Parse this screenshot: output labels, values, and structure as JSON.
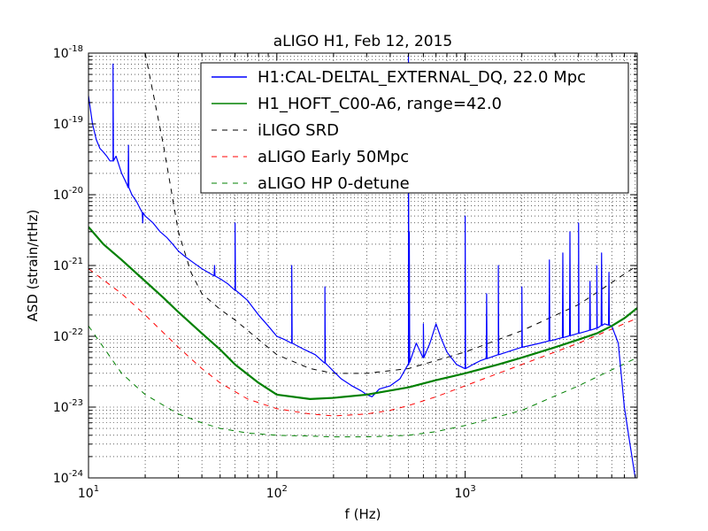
{
  "chart_data": {
    "type": "line",
    "title": "aLIGO H1, Feb 12, 2015",
    "xlabel": "f  (Hz)",
    "ylabel": "ASD (strain/rtHz)",
    "xscale": "log",
    "yscale": "log",
    "xlim": [
      10,
      8192
    ],
    "ylim": [
      1e-24,
      1e-18
    ],
    "grid": true,
    "legend_position": "top-right",
    "x_ticks": [
      {
        "value": 10,
        "base": "10",
        "exp": "1"
      },
      {
        "value": 100,
        "base": "10",
        "exp": "2"
      },
      {
        "value": 1000,
        "base": "10",
        "exp": "3"
      }
    ],
    "y_ticks": [
      {
        "value": 1e-24,
        "base": "10",
        "exp": "-24"
      },
      {
        "value": 1e-23,
        "base": "10",
        "exp": "-23"
      },
      {
        "value": 1e-22,
        "base": "10",
        "exp": "-22"
      },
      {
        "value": 1e-21,
        "base": "10",
        "exp": "-21"
      },
      {
        "value": 1e-20,
        "base": "10",
        "exp": "-20"
      },
      {
        "value": 1e-19,
        "base": "10",
        "exp": "-19"
      },
      {
        "value": 1e-18,
        "base": "10",
        "exp": "-18"
      }
    ],
    "series": [
      {
        "name": "H1:CAL-DELTAL_EXTERNAL_DQ, 22.0 Mpc",
        "color": "#0000ff",
        "style": "solid",
        "width": 1.2,
        "x": [
          10,
          10.5,
          11,
          11.5,
          12,
          12.5,
          13,
          13.5,
          14,
          15,
          16,
          17,
          18,
          19,
          20,
          22,
          24,
          26,
          28,
          30,
          33,
          36,
          40,
          45,
          50,
          55,
          60,
          65,
          70,
          75,
          80,
          90,
          100,
          110,
          120,
          140,
          160,
          180,
          200,
          220,
          250,
          280,
          300,
          320,
          350,
          400,
          450,
          500,
          550,
          600,
          650,
          700,
          750,
          800,
          900,
          1000,
          1100,
          1200,
          1500,
          2000,
          2500,
          3000,
          3500,
          4000,
          4500,
          5000,
          5500,
          6000,
          6500,
          7000,
          7500,
          8000
        ],
        "y": [
          2.5e-19,
          1e-19,
          6e-20,
          4.5e-20,
          4e-20,
          3.5e-20,
          3e-20,
          3e-20,
          3.5e-20,
          2e-20,
          1.4e-20,
          1e-20,
          8e-21,
          6e-21,
          5e-21,
          4e-21,
          3e-21,
          2.5e-21,
          2e-21,
          1.6e-21,
          1.3e-21,
          1.1e-21,
          9e-22,
          7.5e-22,
          6.5e-22,
          5.5e-22,
          4.5e-22,
          3.8e-22,
          3.2e-22,
          2.5e-22,
          2e-22,
          1.4e-22,
          1e-22,
          9e-23,
          8e-23,
          6.5e-23,
          5.5e-23,
          4.2e-23,
          3.2e-23,
          2.5e-23,
          2e-23,
          1.7e-23,
          1.5e-23,
          1.4e-23,
          1.8e-23,
          2e-23,
          2.5e-23,
          4e-23,
          8e-23,
          5e-23,
          8e-23,
          1.5e-22,
          9e-23,
          6e-23,
          4e-23,
          3.5e-23,
          4e-23,
          4.5e-23,
          5.5e-23,
          7e-23,
          8e-23,
          9e-23,
          1e-22,
          1.1e-22,
          1.2e-22,
          1.3e-22,
          1.5e-22,
          1.4e-22,
          8e-23,
          1e-23,
          3e-24,
          1e-24
        ],
        "peaks": [
          {
            "x": 13.5,
            "y": 7e-19
          },
          {
            "x": 16.3,
            "y": 5e-20
          },
          {
            "x": 19.4,
            "y": 4e-21
          },
          {
            "x": 46.7,
            "y": 1e-21
          },
          {
            "x": 60,
            "y": 4e-21
          },
          {
            "x": 120,
            "y": 1e-21
          },
          {
            "x": 180,
            "y": 5e-22
          },
          {
            "x": 500,
            "y": 1e-18
          },
          {
            "x": 505,
            "y": 3e-21
          },
          {
            "x": 600,
            "y": 1.5e-22
          },
          {
            "x": 1000,
            "y": 5e-21
          },
          {
            "x": 1300,
            "y": 4e-22
          },
          {
            "x": 1500,
            "y": 1e-21
          },
          {
            "x": 2000,
            "y": 5e-22
          },
          {
            "x": 2800,
            "y": 1.2e-21
          },
          {
            "x": 3300,
            "y": 1.5e-21
          },
          {
            "x": 3600,
            "y": 3e-21
          },
          {
            "x": 4000,
            "y": 4e-21
          },
          {
            "x": 4600,
            "y": 6e-22
          },
          {
            "x": 5000,
            "y": 1e-21
          },
          {
            "x": 5300,
            "y": 1.5e-21
          },
          {
            "x": 5800,
            "y": 8e-22
          }
        ]
      },
      {
        "name": "H1_HOFT_C00-A6, range=42.0",
        "color": "#008000",
        "style": "solid",
        "width": 2.2,
        "x": [
          10,
          12,
          15,
          20,
          25,
          30,
          40,
          50,
          60,
          80,
          100,
          150,
          200,
          300,
          500,
          700,
          1000,
          1500,
          2000,
          3000,
          4000,
          5000,
          6000,
          7000,
          8192
        ],
        "y": [
          3.5e-21,
          2e-21,
          1.2e-21,
          6e-22,
          3.5e-22,
          2.2e-22,
          1.1e-22,
          6.5e-23,
          4e-23,
          2.2e-23,
          1.5e-23,
          1.3e-23,
          1.35e-23,
          1.5e-23,
          1.9e-23,
          2.4e-23,
          3e-23,
          4e-23,
          5e-23,
          7e-23,
          9e-23,
          1.1e-22,
          1.4e-22,
          1.8e-22,
          2.5e-22
        ]
      },
      {
        "name": "iLIGO SRD",
        "color": "#000000",
        "style": "dashed",
        "width": 1,
        "x": [
          20,
          25,
          30,
          35,
          40,
          50,
          60,
          80,
          100,
          150,
          200,
          300,
          500,
          1000,
          2000,
          4000,
          8192
        ],
        "y": [
          1e-18,
          5e-20,
          3e-21,
          8e-22,
          4e-22,
          2.4e-22,
          1.7e-22,
          9e-23,
          5.5e-23,
          3.5e-23,
          3e-23,
          3e-23,
          3.5e-23,
          6e-23,
          1.2e-22,
          2.8e-22,
          1e-21
        ]
      },
      {
        "name": "aLIGO Early 50Mpc",
        "color": "#ff0000",
        "style": "dashed",
        "width": 1,
        "x": [
          10,
          15,
          20,
          30,
          40,
          50,
          70,
          100,
          150,
          200,
          300,
          400,
          500,
          700,
          1000,
          2000,
          4000,
          8192
        ],
        "y": [
          9e-22,
          4e-22,
          2e-22,
          7e-23,
          3.5e-23,
          2.2e-23,
          1.3e-23,
          9.5e-24,
          8e-24,
          7.5e-24,
          8e-24,
          9e-24,
          1.05e-23,
          1.4e-23,
          2e-23,
          4e-23,
          8e-23,
          1.8e-22
        ]
      },
      {
        "name": "aLIGO HP 0-detune",
        "color": "#008000",
        "style": "dashed",
        "width": 1,
        "x": [
          10,
          12,
          15,
          20,
          30,
          40,
          50,
          70,
          100,
          150,
          200,
          300,
          500,
          700,
          1000,
          2000,
          4000,
          8192
        ],
        "y": [
          1.4e-22,
          7e-23,
          3e-23,
          1.5e-23,
          8e-24,
          6e-24,
          5e-24,
          4.3e-24,
          4e-24,
          3.9e-24,
          3.8e-24,
          3.8e-24,
          4e-24,
          4.5e-24,
          5.5e-24,
          9e-24,
          2e-23,
          5e-23
        ]
      }
    ]
  }
}
